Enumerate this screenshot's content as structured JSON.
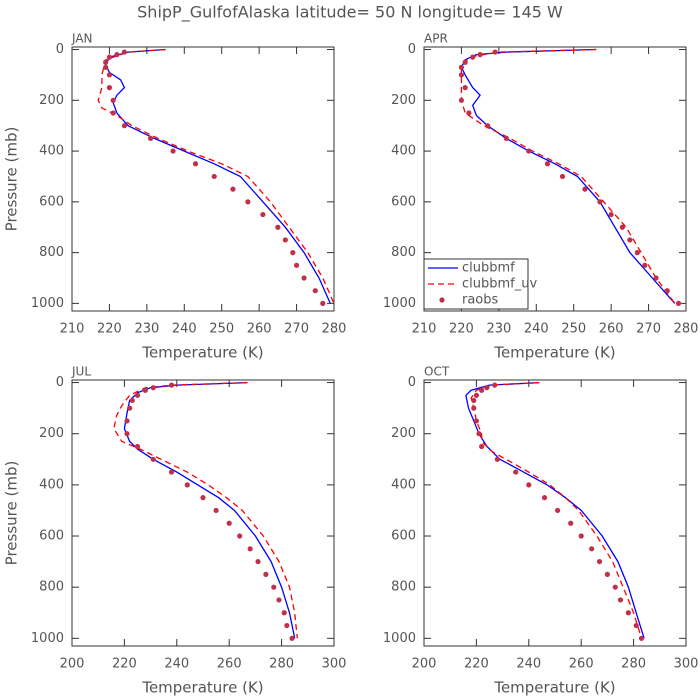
{
  "title": "ShipP_GulfofAlaska  latitude= 50 N longitude= 145 W",
  "chart_data": [
    {
      "type": "line",
      "label": "JAN",
      "xlabel": "Temperature (K)",
      "ylabel": "Pressure (mb)",
      "xlim": [
        210,
        280
      ],
      "xticks": [
        210,
        220,
        230,
        240,
        250,
        260,
        270,
        280
      ],
      "ylim": [
        1030,
        -10
      ],
      "yticks": [
        0,
        200,
        400,
        600,
        800,
        1000
      ],
      "series": [
        {
          "color": "#0000ff",
          "style": "solid",
          "x": [
            235,
            225,
            220,
            219,
            220,
            223,
            224,
            222,
            221,
            222,
            225,
            232,
            240,
            248,
            255,
            261,
            267,
            272,
            276,
            279
          ],
          "y": [
            0,
            10,
            30,
            60,
            90,
            120,
            150,
            180,
            210,
            250,
            300,
            350,
            400,
            450,
            500,
            600,
            700,
            800,
            900,
            1000
          ]
        },
        {
          "color": "#ff0000",
          "style": "dashed",
          "x": [
            235,
            225,
            219,
            218,
            218,
            217,
            218,
            222,
            226,
            233,
            241,
            250,
            257,
            263,
            268,
            273,
            277,
            280
          ],
          "y": [
            0,
            10,
            40,
            100,
            150,
            200,
            230,
            260,
            300,
            350,
            400,
            450,
            500,
            600,
            700,
            800,
            900,
            1000
          ]
        },
        {
          "color": "#c0304a",
          "style": "points",
          "x": [
            224,
            222,
            220,
            219,
            219,
            220,
            220,
            221,
            221,
            224,
            231,
            237,
            243,
            248,
            253,
            257,
            261,
            265,
            267,
            269,
            270,
            272,
            275,
            277
          ],
          "y": [
            10,
            20,
            30,
            50,
            70,
            100,
            150,
            200,
            250,
            300,
            350,
            400,
            450,
            500,
            550,
            600,
            650,
            700,
            750,
            800,
            850,
            900,
            950,
            1000
          ]
        }
      ]
    },
    {
      "type": "line",
      "label": "APR",
      "xlabel": "Temperature (K)",
      "xlim": [
        210,
        280
      ],
      "xticks": [
        210,
        220,
        230,
        240,
        250,
        260,
        270,
        280
      ],
      "ylim": [
        1030,
        -10
      ],
      "yticks": [
        0,
        200,
        400,
        600,
        800,
        1000
      ],
      "legend": "lower left",
      "series": [
        {
          "name": "clubbmf",
          "color": "#0000ff",
          "style": "solid",
          "x": [
            256,
            232,
            224,
            221,
            220,
            221,
            223,
            225,
            223,
            224,
            227,
            232,
            238,
            245,
            251,
            257,
            261,
            265,
            271,
            277
          ],
          "y": [
            0,
            10,
            20,
            40,
            70,
            100,
            150,
            180,
            220,
            260,
            300,
            350,
            400,
            450,
            500,
            600,
            700,
            800,
            900,
            1000
          ]
        },
        {
          "name": "clubbmf_uv",
          "color": "#ff0000",
          "style": "dashed",
          "x": [
            256,
            230,
            222,
            220,
            220,
            220,
            221,
            226,
            233,
            239,
            246,
            252,
            258,
            264,
            268,
            272,
            277
          ],
          "y": [
            0,
            10,
            30,
            70,
            150,
            200,
            250,
            300,
            350,
            400,
            450,
            500,
            600,
            700,
            800,
            900,
            1000
          ]
        },
        {
          "name": "raobs",
          "color": "#c0304a",
          "style": "points",
          "x": [
            229,
            225,
            223,
            221,
            220,
            220,
            221,
            220,
            222,
            227,
            232,
            238,
            243,
            247,
            253,
            257,
            260,
            263,
            265,
            267,
            269,
            272,
            275,
            278
          ],
          "y": [
            10,
            20,
            30,
            50,
            70,
            100,
            150,
            200,
            250,
            300,
            350,
            400,
            450,
            500,
            550,
            600,
            650,
            700,
            750,
            800,
            850,
            900,
            950,
            1000
          ]
        }
      ]
    },
    {
      "type": "line",
      "label": "JUL",
      "xlabel": "Temperature (K)",
      "ylabel": "Pressure (mb)",
      "xlim": [
        200,
        300
      ],
      "xticks": [
        200,
        220,
        240,
        260,
        280,
        300
      ],
      "ylim": [
        1030,
        -10
      ],
      "yticks": [
        0,
        200,
        400,
        600,
        800,
        1000
      ],
      "series": [
        {
          "color": "#0000ff",
          "style": "solid",
          "x": [
            267,
            240,
            230,
            225,
            222,
            221,
            220,
            222,
            225,
            231,
            240,
            248,
            256,
            262,
            270,
            276,
            280,
            283,
            285
          ],
          "y": [
            0,
            10,
            20,
            40,
            70,
            120,
            180,
            230,
            260,
            300,
            350,
            400,
            450,
            500,
            600,
            700,
            800,
            900,
            1000
          ]
        },
        {
          "color": "#ff0000",
          "style": "dashed",
          "x": [
            267,
            238,
            228,
            222,
            219,
            217,
            216,
            219,
            226,
            234,
            244,
            252,
            259,
            265,
            273,
            279,
            283,
            285,
            286
          ],
          "y": [
            0,
            10,
            20,
            50,
            90,
            130,
            180,
            230,
            260,
            300,
            350,
            400,
            450,
            500,
            600,
            700,
            800,
            900,
            1000
          ]
        },
        {
          "color": "#c0304a",
          "style": "points",
          "x": [
            238,
            231,
            228,
            225,
            223,
            222,
            221,
            221,
            225,
            231,
            238,
            244,
            250,
            255,
            260,
            264,
            268,
            271,
            274,
            277,
            279,
            281,
            282,
            284
          ],
          "y": [
            10,
            20,
            30,
            50,
            70,
            100,
            150,
            200,
            250,
            300,
            350,
            400,
            450,
            500,
            550,
            600,
            650,
            700,
            750,
            800,
            850,
            900,
            950,
            1000
          ]
        }
      ]
    },
    {
      "type": "line",
      "label": "OCT",
      "xlabel": "Temperature (K)",
      "xlim": [
        200,
        300
      ],
      "xticks": [
        200,
        220,
        240,
        260,
        280,
        300
      ],
      "ylim": [
        1030,
        -10
      ],
      "yticks": [
        0,
        200,
        400,
        600,
        800,
        1000
      ],
      "series": [
        {
          "color": "#0000ff",
          "style": "solid",
          "x": [
            244,
            225,
            218,
            216,
            217,
            219,
            221,
            224,
            229,
            238,
            247,
            254,
            260,
            268,
            274,
            278,
            281,
            284
          ],
          "y": [
            0,
            10,
            30,
            50,
            100,
            150,
            200,
            250,
            300,
            350,
            400,
            450,
            500,
            600,
            700,
            800,
            900,
            1000
          ]
        },
        {
          "color": "#ff0000",
          "style": "dashed",
          "x": [
            244,
            226,
            220,
            218,
            219,
            220,
            222,
            222,
            226,
            233,
            240,
            248,
            254,
            259,
            266,
            272,
            276,
            280,
            283
          ],
          "y": [
            0,
            10,
            30,
            60,
            100,
            150,
            200,
            230,
            270,
            310,
            350,
            400,
            450,
            500,
            600,
            700,
            800,
            900,
            1000
          ]
        },
        {
          "color": "#c0304a",
          "style": "points",
          "x": [
            227,
            224,
            222,
            220,
            219,
            219,
            220,
            221,
            222,
            228,
            235,
            240,
            246,
            251,
            256,
            260,
            264,
            267,
            270,
            273,
            275,
            278,
            281,
            283
          ],
          "y": [
            10,
            20,
            30,
            50,
            70,
            100,
            150,
            200,
            250,
            300,
            350,
            400,
            450,
            500,
            550,
            600,
            650,
            700,
            750,
            800,
            850,
            900,
            950,
            1000
          ]
        }
      ]
    }
  ]
}
